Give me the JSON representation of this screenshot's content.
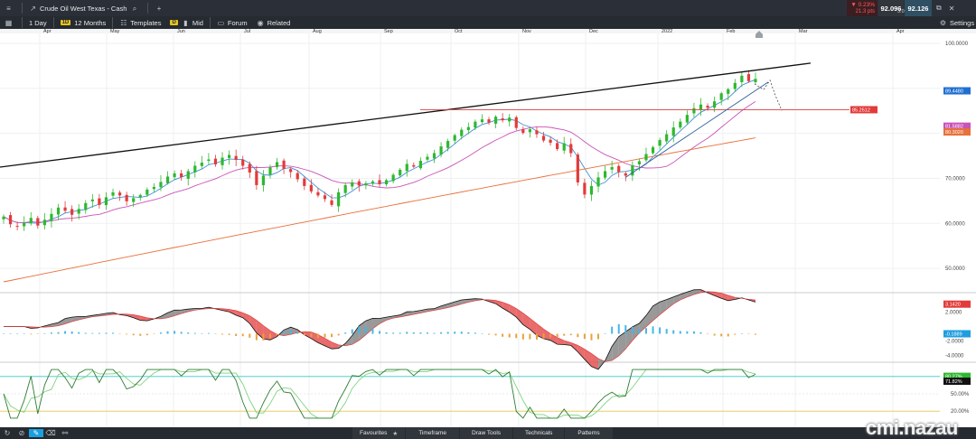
{
  "toolbar": {
    "instrument": "Crude Oil West Texas - Cash",
    "interval_badge": "1D",
    "interval": "1 Day",
    "range": "12 Months",
    "templates": "Templates",
    "price_type_badge": "D",
    "price_type": "Mid",
    "forum": "Forum",
    "related": "Related",
    "change_pct": "▼ 0.23%",
    "change_pts": "21.3 pts",
    "bid": "92.096",
    "ask": "92.126",
    "spread": "3.0",
    "settings": "Settings"
  },
  "bottom_bar": {
    "favourites": "Favourites",
    "timeframe": "Timeframe",
    "draw_tools": "Draw Tools",
    "technicals": "Technicals",
    "patterns": "Patterns"
  },
  "watermark": "cmi.nazau",
  "colors": {
    "up": "#2eb82e",
    "down": "#e23b3b",
    "trendline": "#111111",
    "support_line": "#d94040",
    "ma_fast": "#3f8fd6",
    "ma_mid": "#c953b8",
    "ma_slow": "#e8703a",
    "stoch_k": "#2e7d32",
    "stoch_d": "#7fd37f",
    "macd_fill_up": "#777777",
    "macd_fill_down": "#e23b3b",
    "hist_pos": "#45b6e6",
    "hist_neg": "#e9a23b"
  },
  "chart_data": {
    "type": "candlestick",
    "instrument": "Crude Oil West Texas - Cash",
    "x_ticks": [
      "Apr",
      "May",
      "Jun",
      "Jul",
      "Aug",
      "Sep",
      "Oct",
      "Nov",
      "Dec",
      "2022",
      "Feb",
      "Mar",
      "Apr"
    ],
    "price_ticks": [
      "100.0000",
      "70.0000",
      "60.0000",
      "50.0000"
    ],
    "macd_ticks": [
      "2.0000",
      "-2.0000",
      "-4.0000"
    ],
    "stoch_ticks": [
      "50.00%",
      "20.00%"
    ],
    "price_tags": [
      {
        "label": "89.4480",
        "color": "#1f6fd1"
      },
      {
        "label": "85.2512",
        "color": "#e23b3b"
      },
      {
        "label": "81.5882",
        "color": "#c953b8"
      },
      {
        "label": "80.3020",
        "color": "#e8703a"
      }
    ],
    "macd_tags": [
      {
        "label": "3.1420",
        "color": "#e23b3b"
      },
      {
        "label": "-0.1889",
        "color": "#1f9ee0"
      }
    ],
    "stoch_tags": [
      {
        "label": "80.27%",
        "color": "#2eb82e"
      },
      {
        "label": "71.82%",
        "color": "#111111"
      }
    ],
    "last_price_approx": 92.1,
    "ylim": [
      45,
      102
    ],
    "close_series_approx": [
      61.5,
      59.8,
      59.3,
      60.1,
      61.2,
      59.5,
      60.8,
      62.1,
      63.5,
      62.8,
      61.9,
      63.2,
      64.5,
      65.3,
      64.1,
      65.8,
      66.9,
      66.2,
      64.9,
      65.6,
      66.3,
      67.5,
      68.1,
      69.2,
      70.4,
      71.1,
      70.3,
      71.6,
      72.8,
      73.5,
      74.2,
      73.1,
      74.6,
      75.2,
      74.1,
      72.8,
      71.3,
      68.5,
      70.6,
      72.4,
      73.6,
      72.1,
      71.4,
      69.8,
      68.3,
      67.1,
      66.2,
      65.4,
      64.1,
      66.9,
      68.5,
      69.1,
      68.4,
      68.9,
      69.3,
      68.7,
      69.6,
      70.8,
      71.9,
      73.2,
      72.6,
      73.9,
      74.8,
      75.6,
      77.1,
      78.3,
      79.6,
      80.8,
      81.4,
      82.6,
      83.1,
      82.4,
      83.7,
      82.9,
      83.5,
      81.2,
      80.1,
      80.9,
      79.8,
      78.4,
      77.9,
      76.5,
      77.8,
      75.6,
      69.1,
      66.4,
      68.3,
      70.2,
      71.6,
      72.5,
      71.4,
      70.6,
      72.9,
      73.8,
      75.4,
      76.9,
      78.5,
      79.8,
      81.3,
      82.6,
      84.1,
      85.6,
      86.4,
      85.7,
      87.1,
      88.9,
      89.8,
      91.2,
      92.8,
      91.6,
      92.1
    ]
  }
}
